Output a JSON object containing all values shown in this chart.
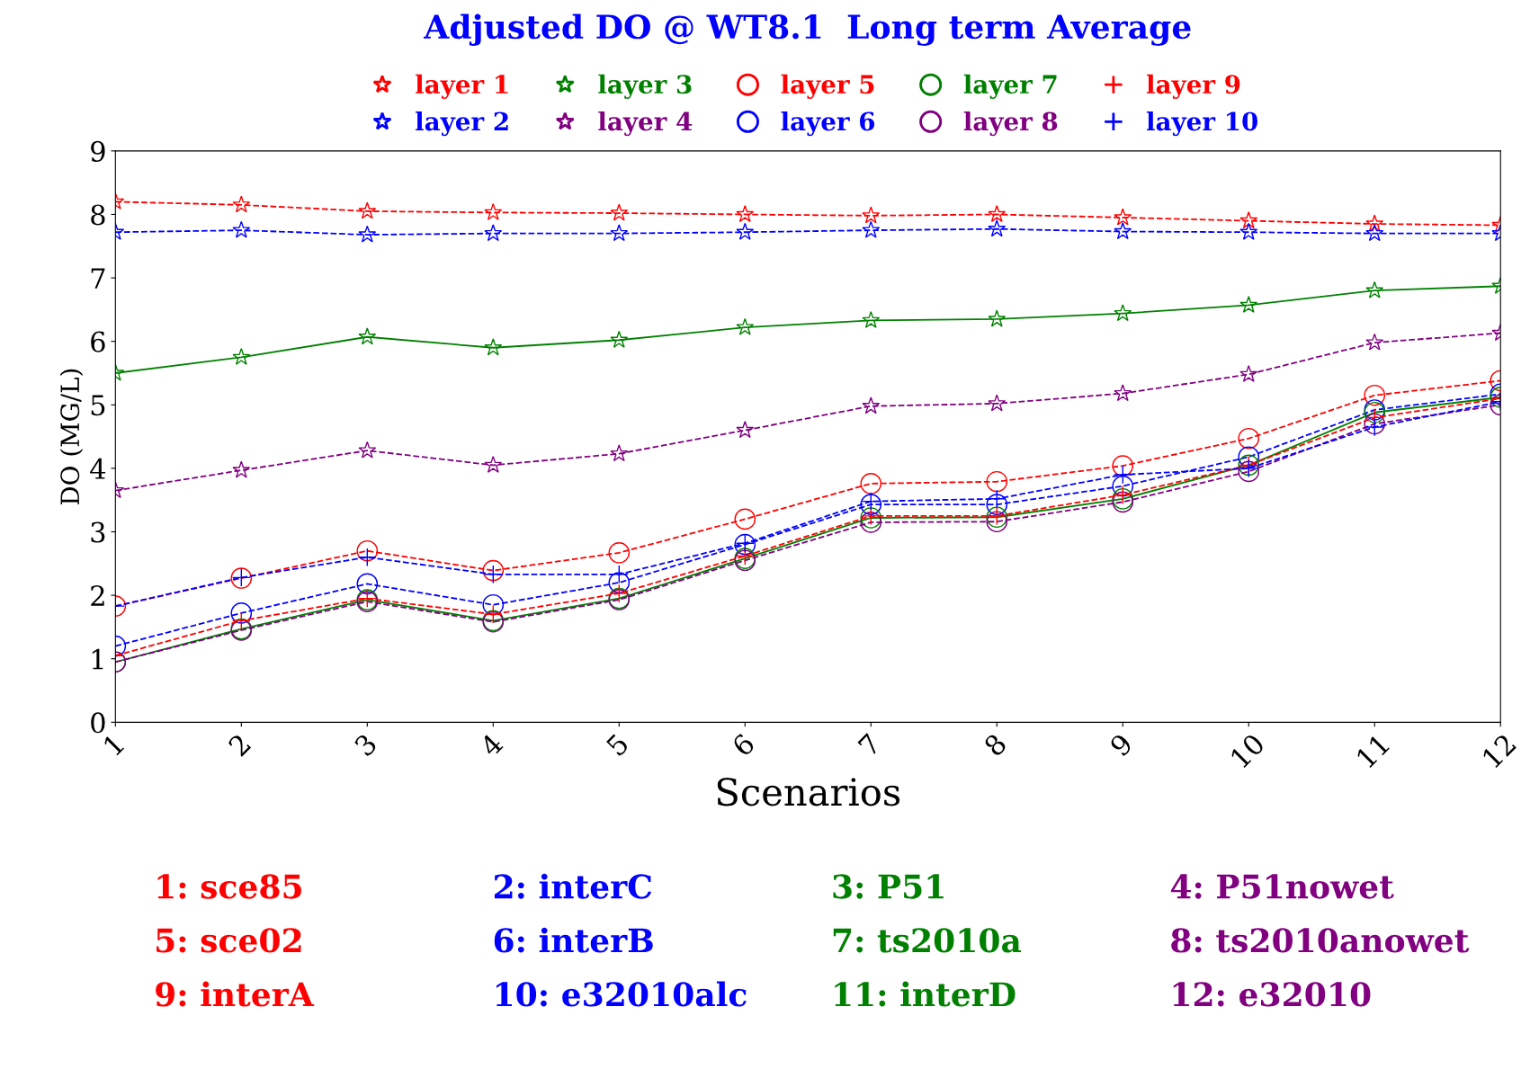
{
  "chart_data": {
    "type": "line",
    "title": "Adjusted DO @ WT8.1  Long term Average",
    "xlabel": "Scenarios",
    "ylabel": "DO (MG/L)",
    "x": [
      1,
      2,
      3,
      4,
      5,
      6,
      7,
      8,
      9,
      10,
      11,
      12
    ],
    "xlim": [
      1,
      12
    ],
    "xticks": [
      1,
      2,
      3,
      4,
      5,
      6,
      7,
      8,
      9,
      10,
      11,
      12
    ],
    "ylim": [
      0,
      9
    ],
    "yticks": [
      0,
      1,
      2,
      3,
      4,
      5,
      6,
      7,
      8,
      9
    ],
    "grid": false,
    "legend": "top",
    "series": [
      {
        "name": "layer 1",
        "color": "#ff0000",
        "marker": "star",
        "line_style": "dashed",
        "values": [
          8.2,
          8.15,
          8.05,
          8.03,
          8.02,
          8.0,
          7.98,
          8.0,
          7.95,
          7.9,
          7.85,
          7.83
        ]
      },
      {
        "name": "layer 2",
        "color": "#0000ff",
        "marker": "star",
        "line_style": "dashed",
        "values": [
          7.72,
          7.75,
          7.68,
          7.7,
          7.7,
          7.72,
          7.75,
          7.77,
          7.73,
          7.72,
          7.7,
          7.7
        ]
      },
      {
        "name": "layer 3",
        "color": "#008000",
        "marker": "star",
        "line_style": "solid",
        "values": [
          5.5,
          5.75,
          6.07,
          5.9,
          6.02,
          6.22,
          6.33,
          6.35,
          6.44,
          6.57,
          6.8,
          6.87
        ]
      },
      {
        "name": "layer 4",
        "color": "#800080",
        "marker": "star",
        "line_style": "dashed",
        "values": [
          3.65,
          3.97,
          4.28,
          4.05,
          4.23,
          4.6,
          4.98,
          5.02,
          5.18,
          5.48,
          5.98,
          6.13
        ]
      },
      {
        "name": "layer 5",
        "color": "#ff0000",
        "marker": "circle",
        "line_style": "dashed",
        "values": [
          1.83,
          2.27,
          2.7,
          2.39,
          2.67,
          3.2,
          3.76,
          3.79,
          4.04,
          4.47,
          5.15,
          5.38
        ]
      },
      {
        "name": "layer 6",
        "color": "#0000ff",
        "marker": "circle",
        "line_style": "dashed",
        "values": [
          1.2,
          1.72,
          2.18,
          1.85,
          2.2,
          2.8,
          3.43,
          3.43,
          3.72,
          4.18,
          4.92,
          5.17
        ]
      },
      {
        "name": "layer 7",
        "color": "#008000",
        "marker": "circle",
        "line_style": "solid",
        "values": [
          0.95,
          1.47,
          1.93,
          1.6,
          1.95,
          2.58,
          3.22,
          3.23,
          3.52,
          4.05,
          4.88,
          5.12
        ]
      },
      {
        "name": "layer 8",
        "color": "#800080",
        "marker": "circle",
        "line_style": "dashed",
        "values": [
          0.95,
          1.45,
          1.9,
          1.58,
          1.93,
          2.55,
          3.15,
          3.16,
          3.47,
          3.95,
          4.7,
          5.0
        ]
      },
      {
        "name": "layer 9",
        "color": "#ff0000",
        "marker": "cross",
        "line_style": "dashed",
        "values": [
          1.05,
          1.6,
          1.95,
          1.7,
          2.03,
          2.62,
          3.25,
          3.25,
          3.58,
          4.05,
          4.8,
          5.1
        ]
      },
      {
        "name": "layer 10",
        "color": "#0000ff",
        "marker": "cross",
        "line_style": "dashed",
        "values": [
          1.83,
          2.28,
          2.6,
          2.33,
          2.33,
          2.82,
          3.48,
          3.52,
          3.9,
          4.0,
          4.65,
          5.05
        ]
      }
    ],
    "annotations": [
      "1: sce85",
      "2: interC",
      "3: P51",
      "4: P51nowet",
      "5: sce02",
      "6: interB",
      "7: ts2010a",
      "8: ts2010anowet",
      "9: interA",
      "10: e32010alc",
      "11: interD",
      "12: e32010"
    ]
  }
}
